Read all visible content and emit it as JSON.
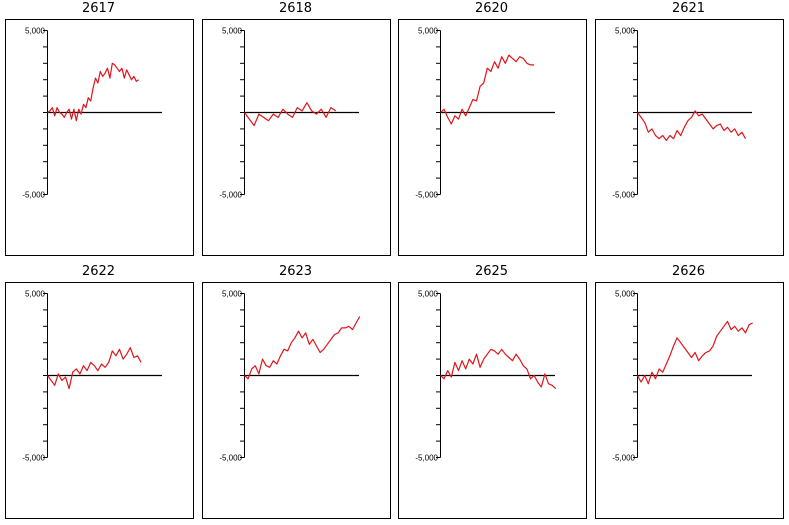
{
  "colors": {
    "line": "#e0151b",
    "axis": "#000000",
    "frame": "#000000",
    "background": "#ffffff"
  },
  "chart_data": [
    {
      "type": "line",
      "title": "2617",
      "ylim": [
        -5000,
        5000
      ],
      "ytick_labels": [
        "5,000",
        "-5,000"
      ],
      "zero_line": true,
      "x": [
        0,
        2,
        4,
        6,
        8,
        10,
        12,
        14,
        16,
        18,
        20,
        22,
        24,
        26,
        28,
        30,
        32,
        34,
        36,
        38,
        40,
        42,
        44,
        46,
        48,
        50,
        52,
        54,
        56,
        58,
        60,
        62,
        64,
        66,
        68,
        70,
        72,
        74,
        76
      ],
      "values": [
        0,
        100,
        300,
        -200,
        300,
        0,
        -100,
        -300,
        0,
        200,
        -400,
        200,
        -500,
        200,
        -100,
        500,
        300,
        900,
        700,
        1500,
        2100,
        1800,
        2500,
        2200,
        2400,
        2700,
        2100,
        3000,
        2900,
        2700,
        2500,
        2700,
        2100,
        2600,
        2300,
        2000,
        2200,
        1900,
        2000
      ]
    },
    {
      "type": "line",
      "title": "2618",
      "ylim": [
        -5000,
        5000
      ],
      "ytick_labels": [
        "5,000",
        "-5,000"
      ],
      "zero_line": true,
      "x": [
        0,
        4,
        8,
        12,
        16,
        20,
        24,
        28,
        32,
        36,
        40,
        44,
        48,
        52,
        56,
        60,
        64,
        68,
        72,
        76
      ],
      "values": [
        0,
        -400,
        -800,
        -100,
        -300,
        -500,
        -100,
        -300,
        200,
        -100,
        -300,
        300,
        100,
        600,
        100,
        -100,
        200,
        -300,
        300,
        100
      ]
    },
    {
      "type": "line",
      "title": "2620",
      "ylim": [
        -5000,
        5000
      ],
      "ytick_labels": [
        "5,000",
        "-5,000"
      ],
      "zero_line": true,
      "x": [
        0,
        3,
        6,
        9,
        12,
        15,
        18,
        21,
        24,
        27,
        30,
        33,
        36,
        39,
        42,
        45,
        48,
        51,
        54,
        57,
        60,
        63,
        66,
        69,
        72,
        75,
        78
      ],
      "values": [
        0,
        200,
        -300,
        -700,
        -200,
        -400,
        200,
        -200,
        300,
        800,
        700,
        1600,
        1800,
        2700,
        2500,
        3100,
        2700,
        3400,
        3000,
        3500,
        3300,
        3100,
        3400,
        3300,
        3000,
        2900,
        2900
      ]
    },
    {
      "type": "line",
      "title": "2621",
      "ylim": [
        -5000,
        5000
      ],
      "ytick_labels": [
        "5,000",
        "-5,000"
      ],
      "zero_line": true,
      "x": [
        0,
        3,
        6,
        9,
        12,
        15,
        18,
        21,
        24,
        27,
        30,
        33,
        36,
        39,
        42,
        45,
        48,
        51,
        54,
        57,
        60,
        63,
        66,
        69,
        72,
        75,
        78,
        81,
        84,
        87,
        90
      ],
      "values": [
        0,
        -300,
        -600,
        -1200,
        -1000,
        -1400,
        -1600,
        -1400,
        -1700,
        -1400,
        -1600,
        -1100,
        -1400,
        -900,
        -500,
        -300,
        100,
        -200,
        -100,
        -400,
        -700,
        -1000,
        -800,
        -700,
        -1100,
        -900,
        -1200,
        -1000,
        -1400,
        -1200,
        -1600
      ]
    },
    {
      "type": "line",
      "title": "2622",
      "ylim": [
        -5000,
        5000
      ],
      "ytick_labels": [
        "5,000",
        "-5,000"
      ],
      "zero_line": true,
      "x": [
        0,
        3,
        6,
        9,
        12,
        15,
        18,
        21,
        24,
        27,
        30,
        33,
        36,
        39,
        42,
        45,
        48,
        51,
        54,
        57,
        60,
        63,
        66,
        69,
        72,
        75,
        78
      ],
      "values": [
        0,
        -300,
        -600,
        100,
        -300,
        -100,
        -800,
        200,
        400,
        100,
        600,
        300,
        800,
        600,
        300,
        700,
        500,
        800,
        1500,
        1200,
        1600,
        1000,
        1300,
        1700,
        1100,
        1200,
        800
      ]
    },
    {
      "type": "line",
      "title": "2623",
      "ylim": [
        -5000,
        5000
      ],
      "ytick_labels": [
        "5,000",
        "-5,000"
      ],
      "zero_line": true,
      "x": [
        0,
        3,
        6,
        9,
        12,
        15,
        18,
        21,
        24,
        27,
        30,
        33,
        36,
        39,
        42,
        45,
        48,
        51,
        54,
        57,
        60,
        63,
        66,
        69,
        72,
        75,
        78,
        81,
        84,
        87,
        90,
        93,
        96
      ],
      "values": [
        0,
        -200,
        400,
        600,
        100,
        1000,
        600,
        500,
        900,
        700,
        1200,
        1600,
        1500,
        2000,
        2300,
        2700,
        2300,
        2600,
        1900,
        2200,
        1800,
        1400,
        1600,
        1900,
        2200,
        2500,
        2600,
        2900,
        2900,
        3000,
        2800,
        3200,
        3600
      ]
    },
    {
      "type": "line",
      "title": "2625",
      "ylim": [
        -5000,
        5000
      ],
      "ytick_labels": [
        "5,000",
        "-5,000"
      ],
      "zero_line": true,
      "x": [
        0,
        3,
        6,
        9,
        12,
        15,
        18,
        21,
        24,
        27,
        30,
        33,
        36,
        39,
        42,
        45,
        48,
        51,
        54,
        57,
        60,
        63,
        66,
        69,
        72,
        75,
        78,
        81,
        84,
        87,
        90,
        93,
        96
      ],
      "values": [
        0,
        -200,
        300,
        -100,
        800,
        300,
        900,
        400,
        1000,
        700,
        1300,
        500,
        1000,
        1300,
        1600,
        1500,
        1300,
        1600,
        1300,
        1100,
        900,
        1300,
        1000,
        600,
        400,
        -200,
        0,
        -400,
        -700,
        100,
        -500,
        -600,
        -800
      ]
    },
    {
      "type": "line",
      "title": "2626",
      "ylim": [
        -5000,
        5000
      ],
      "ytick_labels": [
        "5,000",
        "-5,000"
      ],
      "zero_line": true,
      "x": [
        0,
        3,
        6,
        9,
        12,
        15,
        18,
        21,
        24,
        27,
        30,
        33,
        36,
        39,
        42,
        45,
        48,
        51,
        54,
        57,
        60,
        63,
        66,
        69,
        72,
        75,
        78,
        81,
        84,
        87,
        90,
        93,
        96
      ],
      "values": [
        0,
        -400,
        0,
        -500,
        200,
        -200,
        400,
        200,
        700,
        1200,
        1800,
        2300,
        2000,
        1700,
        1400,
        1100,
        1400,
        900,
        1200,
        1400,
        1500,
        1800,
        2400,
        2700,
        3000,
        3300,
        2800,
        3000,
        2700,
        2900,
        2600,
        3100,
        3200
      ]
    }
  ]
}
